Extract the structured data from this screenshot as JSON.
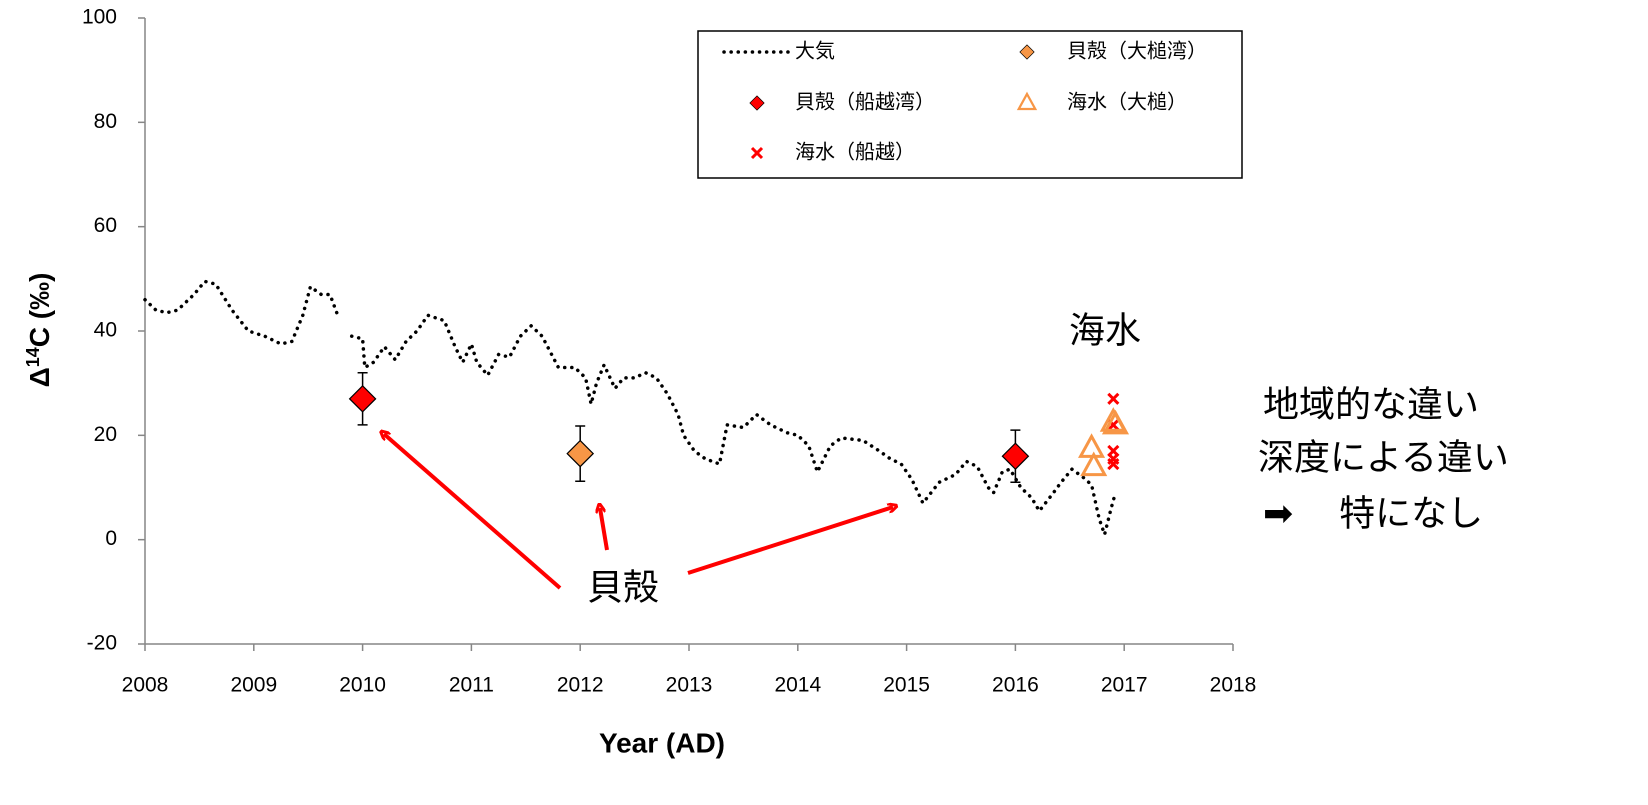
{
  "chart_data": {
    "type": "scatter",
    "xlabel": "Year (AD)",
    "ylabel": {
      "base": "Δ",
      "sup": "14",
      "rest": "C (‰)"
    },
    "xlim": [
      2008,
      2018
    ],
    "xticks": [
      2008,
      2009,
      2010,
      2011,
      2012,
      2013,
      2014,
      2015,
      2016,
      2017,
      2018
    ],
    "ylim": [
      -20,
      100
    ],
    "yticks": [
      -20,
      0,
      20,
      40,
      60,
      80,
      100
    ],
    "series": [
      {
        "name": "大気",
        "kind": "line",
        "color": "#000000",
        "x": [
          2008.0,
          2008.1,
          2008.2,
          2008.3,
          2008.45,
          2008.55,
          2008.65,
          2008.8,
          2008.95,
          2009.1,
          2009.25,
          2009.35,
          2009.45,
          2009.52,
          2009.62,
          2009.7,
          2009.78,
          2009.84,
          2009.9,
          2010.0,
          2010.02,
          2010.1,
          2010.2,
          2010.3,
          2010.4,
          2010.5,
          2010.6,
          2010.75,
          2010.85,
          2010.92,
          2011.0,
          2011.05,
          2011.15,
          2011.25,
          2011.35,
          2011.45,
          2011.55,
          2011.65,
          2011.75,
          2011.8,
          2011.95,
          2012.05,
          2012.1,
          2012.15,
          2012.22,
          2012.32,
          2012.4,
          2012.5,
          2012.6,
          2012.7,
          2012.8,
          2012.9,
          2012.95,
          2013.05,
          2013.15,
          2013.28,
          2013.35,
          2013.5,
          2013.62,
          2013.75,
          2013.9,
          2014.0,
          2014.1,
          2014.18,
          2014.3,
          2014.4,
          2014.6,
          2014.75,
          2014.85,
          2014.95,
          2015.05,
          2015.15,
          2015.3,
          2015.45,
          2015.55,
          2015.65,
          2015.75,
          2015.8,
          2015.88,
          2015.95,
          2016.05,
          2016.15,
          2016.22,
          2016.35,
          2016.42,
          2016.52,
          2016.62,
          2016.7,
          2016.77,
          2016.82,
          2016.88,
          2016.92
        ],
        "values": [
          46,
          44,
          43.5,
          44,
          47,
          49.5,
          49,
          44,
          40,
          39,
          37.5,
          38,
          43,
          48.5,
          47,
          47,
          42.5,
          null,
          39,
          38.5,
          33,
          34,
          37,
          34.5,
          38,
          40,
          43,
          42,
          37,
          34,
          37.5,
          34,
          31.5,
          35.5,
          35,
          39,
          41,
          39,
          35,
          33,
          33,
          31,
          26,
          30,
          33.5,
          29,
          31,
          31,
          32,
          31,
          28,
          24,
          20,
          17,
          15.5,
          14.5,
          22,
          21.5,
          24,
          22,
          20.5,
          20,
          18,
          13,
          18,
          19.5,
          19,
          17,
          15.5,
          14.5,
          11.5,
          7,
          11,
          12.5,
          15,
          14,
          10,
          9,
          13,
          13.5,
          10,
          8,
          5.5,
          9,
          11,
          13.5,
          12,
          10.5,
          4,
          1,
          6,
          9
        ]
      },
      {
        "name": "貝殻（船越湾）",
        "kind": "diamond",
        "color": "#ff0000",
        "x": [
          2010,
          2016
        ],
        "values": [
          27,
          16
        ],
        "errors": [
          5,
          5
        ]
      },
      {
        "name": "貝殻（大槌湾）",
        "kind": "diamond",
        "color": "#f79646",
        "x": [
          2012
        ],
        "values": [
          16.5
        ],
        "errors": [
          5.3
        ]
      },
      {
        "name": "海水（船越）",
        "kind": "cross",
        "color": "#ff0000",
        "x": [
          2016.9,
          2016.9,
          2016.9,
          2016.9,
          2016.9
        ],
        "values": [
          27,
          22,
          17,
          15.5,
          14.5
        ]
      },
      {
        "name": "海水（大槌）",
        "kind": "triangle",
        "color": "#f79646",
        "x": [
          2016.7,
          2016.72,
          2016.9,
          2016.92
        ],
        "values": [
          17.5,
          14,
          22.5,
          22
        ]
      }
    ],
    "annotations": [
      "海水",
      "地域的な違い",
      "深度による違い",
      "➡　 特になし",
      "貝殻"
    ]
  }
}
